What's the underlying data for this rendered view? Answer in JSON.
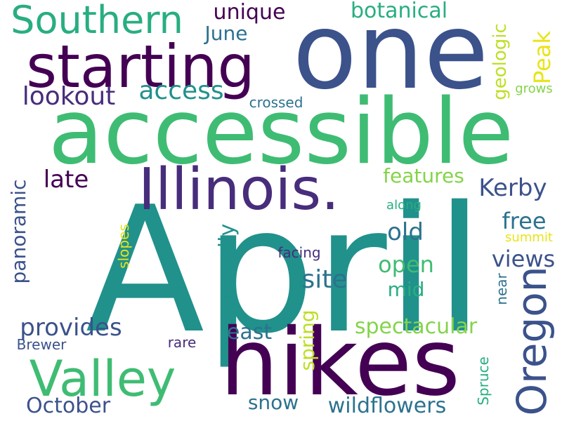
{
  "words": {
    "april": "April",
    "accessible": "accessible",
    "one": "one",
    "hikes": "hikes",
    "illinois": "Illinois.",
    "starting": "starting",
    "southern": "Southern",
    "valley": "Valley",
    "oregon": "Oregon",
    "access": "access",
    "lookout": "lookout",
    "unique": "unique",
    "june": "June",
    "botanical": "botanical",
    "geologic": "geologic",
    "peak": "Peak",
    "grows": "grows",
    "crossed": "crossed",
    "features": "features",
    "kerby": "Kerby",
    "late": "late",
    "panoramic": "panoramic",
    "along": "along",
    "free": "free",
    "old": "old",
    "summit": "summit",
    "slopes": "slopes",
    "usually": "usually",
    "facing": "facing",
    "views": "views",
    "open": "open",
    "site": "site",
    "mid": "mid",
    "near": "near",
    "provides": "provides",
    "spring": "spring",
    "spectacular": "spectacular",
    "east": "east",
    "brewer": "Brewer",
    "rare": "rare",
    "spruce": "Spruce",
    "october": "October",
    "snow": "snow",
    "wildflowers": "wildflowers"
  },
  "palette": {
    "dark_purple": "#440154",
    "indigo": "#472d7b",
    "slate_blue": "#3b528b",
    "steel": "#2c728e",
    "teal": "#21918c",
    "sea_green": "#28ae80",
    "green": "#3fbc73",
    "lime": "#84d44b",
    "yellow_green": "#bddf26",
    "yellow": "#e8e419"
  }
}
